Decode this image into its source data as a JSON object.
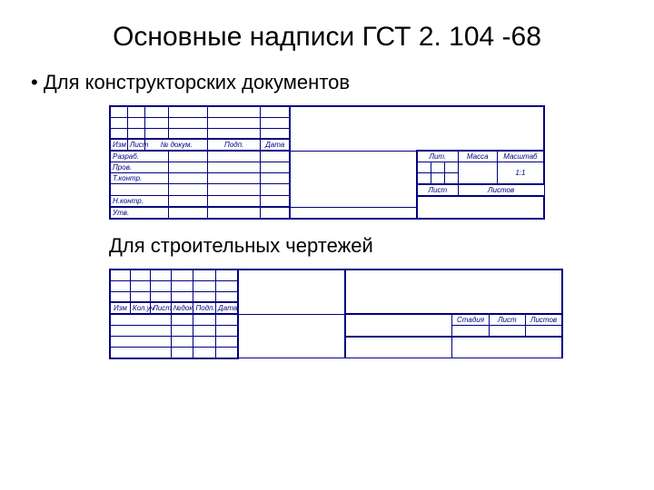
{
  "title": "Основные надписи ГСТ 2. 104 -68",
  "bullet1": "Для конструкторских документов",
  "caption2": "Для строительных чертежей",
  "t1": {
    "hdr": {
      "izm": "Изм",
      "list": "Лист",
      "ndoc": "№ докум.",
      "podp": "Подп.",
      "data": "Дата",
      "lit": "Лит.",
      "massa": "Масса",
      "masht": "Масштаб",
      "list2": "Лист",
      "listov": "Листов",
      "scale": "1:1"
    },
    "roles": {
      "razrab": "Разраб.",
      "prov": "Пров.",
      "tkontr": "Т.контр.",
      "nkontr": "Н.контр.",
      "utv": "Утв."
    }
  },
  "t2": {
    "hdr": {
      "izm": "Изм",
      "kol": "Кол.уч",
      "list": "Лист",
      "ndoc": "№док.",
      "podp": "Подп.",
      "data": "Дата",
      "stadia": "Стадия",
      "list2": "Лист",
      "listov": "Листов"
    }
  },
  "colors": {
    "line": "#000080",
    "text": "#000000",
    "bg": "#ffffff"
  }
}
